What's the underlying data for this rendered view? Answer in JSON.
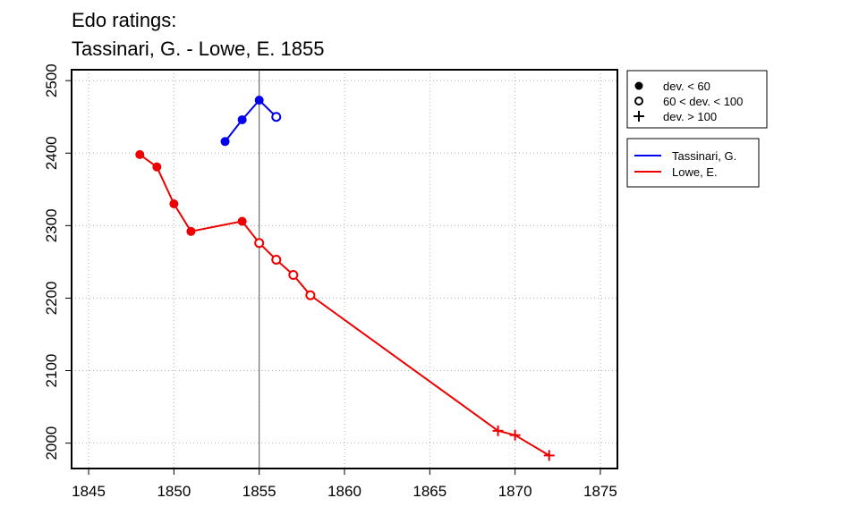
{
  "chart_data": {
    "type": "line",
    "title": [
      "Edo ratings:",
      "Tassinari, G. - Lowe, E. 1855"
    ],
    "xlabel": "",
    "ylabel": "",
    "xlim": [
      1844,
      1876
    ],
    "ylim": [
      1965,
      2515
    ],
    "xticks": [
      1845,
      1850,
      1855,
      1860,
      1865,
      1870,
      1875
    ],
    "yticks": [
      2000,
      2100,
      2200,
      2300,
      2400,
      2500
    ],
    "grid": true,
    "vline_x": 1855,
    "marker_legend": [
      {
        "marker": "filled",
        "label": "dev. < 60"
      },
      {
        "marker": "open",
        "label": "60 < dev. < 100"
      },
      {
        "marker": "plus",
        "label": "dev. > 100"
      }
    ],
    "legend_position": "right",
    "series": [
      {
        "name": "Tassinari, G.",
        "color": "#0000ee",
        "points": [
          {
            "x": 1853,
            "y": 2416,
            "marker": "filled"
          },
          {
            "x": 1854,
            "y": 2446,
            "marker": "filled"
          },
          {
            "x": 1855,
            "y": 2473,
            "marker": "filled"
          },
          {
            "x": 1856,
            "y": 2450,
            "marker": "open"
          }
        ]
      },
      {
        "name": "Lowe, E.",
        "color": "#ee0000",
        "points": [
          {
            "x": 1848,
            "y": 2398,
            "marker": "filled"
          },
          {
            "x": 1849,
            "y": 2381,
            "marker": "filled"
          },
          {
            "x": 1850,
            "y": 2330,
            "marker": "filled"
          },
          {
            "x": 1851,
            "y": 2292,
            "marker": "filled"
          },
          {
            "x": 1854,
            "y": 2306,
            "marker": "filled"
          },
          {
            "x": 1855,
            "y": 2276,
            "marker": "open"
          },
          {
            "x": 1856,
            "y": 2253,
            "marker": "open"
          },
          {
            "x": 1857,
            "y": 2232,
            "marker": "open"
          },
          {
            "x": 1858,
            "y": 2204,
            "marker": "open"
          },
          {
            "x": 1869,
            "y": 2017,
            "marker": "plus"
          },
          {
            "x": 1870,
            "y": 2011,
            "marker": "plus"
          },
          {
            "x": 1872,
            "y": 1983,
            "marker": "plus"
          }
        ]
      }
    ]
  }
}
